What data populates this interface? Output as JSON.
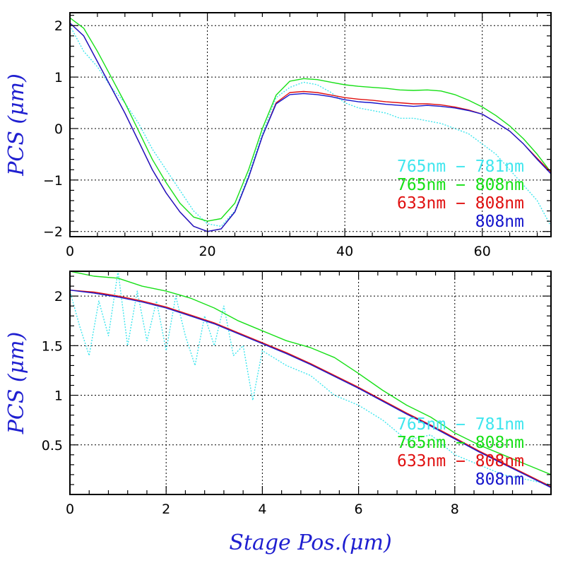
{
  "figure": {
    "xlabel": "Stage Pos.(μm)",
    "ylabel_top": "PCS (μm)",
    "ylabel_bottom": "PCS (μm)"
  },
  "colors": {
    "cyan": "#3fe6ee",
    "green": "#17e017",
    "red": "#e01010",
    "blue": "#1515cc",
    "axis_title": "#1f1fd0"
  },
  "chart_data": [
    {
      "type": "line",
      "panel": "top",
      "xlim": [
        0,
        70
      ],
      "ylim": [
        -2.1,
        2.25
      ],
      "x_ticks": [
        0,
        20,
        40,
        60
      ],
      "y_ticks": [
        -2,
        -1,
        0,
        1,
        2
      ],
      "y_tick_labels": [
        "−2",
        "−1",
        "0",
        "1",
        "2"
      ],
      "grid": true,
      "legend_position": "bottom-right",
      "legend": [
        "765nm − 781nm",
        "765nm − 808nm",
        "633nm − 808nm",
        "808nm"
      ],
      "series": [
        {
          "name": "765nm − 781nm",
          "color": "cyan",
          "style": "dotted",
          "x": [
            0,
            2,
            4,
            6,
            8,
            10,
            12,
            14,
            16,
            18,
            20,
            22,
            24,
            26,
            28,
            30,
            32,
            34,
            36,
            38,
            40,
            42,
            44,
            46,
            48,
            50,
            52,
            54,
            56,
            58,
            60,
            62,
            64,
            66,
            68,
            70
          ],
          "y": [
            2.0,
            1.5,
            1.2,
            0.8,
            0.5,
            0.1,
            -0.4,
            -0.8,
            -1.2,
            -1.6,
            -1.85,
            -1.9,
            -1.6,
            -0.9,
            -0.1,
            0.6,
            0.8,
            0.9,
            0.85,
            0.7,
            0.5,
            0.4,
            0.35,
            0.3,
            0.2,
            0.2,
            0.15,
            0.1,
            0.0,
            -0.1,
            -0.3,
            -0.5,
            -0.8,
            -1.1,
            -1.4,
            -1.9
          ]
        },
        {
          "name": "765nm − 808nm",
          "color": "green",
          "style": "solid",
          "x": [
            0,
            2,
            4,
            6,
            8,
            10,
            12,
            14,
            16,
            18,
            20,
            22,
            24,
            26,
            28,
            30,
            32,
            34,
            36,
            38,
            40,
            42,
            44,
            46,
            48,
            50,
            52,
            54,
            56,
            58,
            60,
            62,
            64,
            66,
            68,
            70
          ],
          "y": [
            2.15,
            1.95,
            1.5,
            1.0,
            0.5,
            -0.05,
            -0.6,
            -1.05,
            -1.45,
            -1.72,
            -1.8,
            -1.75,
            -1.45,
            -0.8,
            0.0,
            0.65,
            0.92,
            0.97,
            0.95,
            0.9,
            0.85,
            0.82,
            0.8,
            0.78,
            0.75,
            0.74,
            0.75,
            0.73,
            0.66,
            0.55,
            0.42,
            0.25,
            0.05,
            -0.2,
            -0.5,
            -0.85
          ]
        },
        {
          "name": "633nm − 808nm",
          "color": "red",
          "style": "solid",
          "x": [
            0,
            2,
            4,
            6,
            8,
            10,
            12,
            14,
            16,
            18,
            20,
            22,
            24,
            26,
            28,
            30,
            32,
            34,
            36,
            38,
            40,
            42,
            44,
            46,
            48,
            50,
            52,
            54,
            56,
            58,
            60,
            62,
            64,
            66,
            68,
            70
          ],
          "y": [
            2.05,
            1.8,
            1.3,
            0.8,
            0.3,
            -0.25,
            -0.8,
            -1.25,
            -1.62,
            -1.9,
            -2.0,
            -1.95,
            -1.62,
            -0.95,
            -0.15,
            0.5,
            0.7,
            0.72,
            0.7,
            0.65,
            0.6,
            0.57,
            0.55,
            0.52,
            0.5,
            0.48,
            0.48,
            0.46,
            0.42,
            0.36,
            0.28,
            0.12,
            -0.05,
            -0.3,
            -0.58,
            -0.85
          ]
        },
        {
          "name": "808nm",
          "color": "blue",
          "style": "solid",
          "x": [
            0,
            2,
            4,
            6,
            8,
            10,
            12,
            14,
            16,
            18,
            20,
            22,
            24,
            26,
            28,
            30,
            32,
            34,
            36,
            38,
            40,
            42,
            44,
            46,
            48,
            50,
            52,
            54,
            56,
            58,
            60,
            62,
            64,
            66,
            68,
            70
          ],
          "y": [
            2.05,
            1.8,
            1.3,
            0.8,
            0.3,
            -0.25,
            -0.8,
            -1.25,
            -1.62,
            -1.9,
            -2.0,
            -1.95,
            -1.62,
            -0.95,
            -0.15,
            0.48,
            0.66,
            0.68,
            0.66,
            0.62,
            0.56,
            0.52,
            0.5,
            0.47,
            0.45,
            0.43,
            0.45,
            0.43,
            0.4,
            0.35,
            0.28,
            0.12,
            -0.05,
            -0.3,
            -0.6,
            -0.88
          ]
        }
      ]
    },
    {
      "type": "line",
      "panel": "bottom",
      "xlim": [
        0,
        10
      ],
      "ylim": [
        0.0,
        2.25
      ],
      "x_ticks": [
        0,
        2,
        4,
        6,
        8
      ],
      "y_ticks": [
        0.5,
        1,
        1.5,
        2
      ],
      "y_tick_labels": [
        "0.5",
        "1",
        "1.5",
        "2"
      ],
      "grid": true,
      "legend_position": "bottom-right",
      "legend": [
        "765nm − 781nm",
        "765nm − 808nm",
        "633nm − 808nm",
        "808nm"
      ],
      "series": [
        {
          "name": "765nm − 781nm",
          "color": "cyan",
          "style": "dotted",
          "x": [
            0,
            0.2,
            0.4,
            0.6,
            0.8,
            1.0,
            1.2,
            1.4,
            1.6,
            1.8,
            2.0,
            2.2,
            2.4,
            2.6,
            2.8,
            3.0,
            3.2,
            3.4,
            3.6,
            3.8,
            4.0,
            4.5,
            5.0,
            5.5,
            6.0,
            6.5,
            7.0,
            7.5,
            8.0,
            8.5,
            9.0,
            9.5,
            10.0
          ],
          "y": [
            2.05,
            1.7,
            1.4,
            1.95,
            1.6,
            2.25,
            1.5,
            2.05,
            1.55,
            1.95,
            1.45,
            2.0,
            1.6,
            1.3,
            1.8,
            1.5,
            1.9,
            1.4,
            1.5,
            0.95,
            1.45,
            1.3,
            1.2,
            1.0,
            0.9,
            0.75,
            0.55,
            0.6,
            0.4,
            0.3,
            0.2,
            0.15,
            0.1
          ]
        },
        {
          "name": "765nm − 808nm",
          "color": "green",
          "style": "solid",
          "x": [
            0,
            0.5,
            1.0,
            1.5,
            2.0,
            2.5,
            3.0,
            3.5,
            4.0,
            4.5,
            5.0,
            5.5,
            6.0,
            6.5,
            7.0,
            7.5,
            8.0,
            8.5,
            9.0,
            9.5,
            10.0
          ],
          "y": [
            2.25,
            2.2,
            2.18,
            2.1,
            2.05,
            1.98,
            1.88,
            1.75,
            1.65,
            1.55,
            1.48,
            1.38,
            1.22,
            1.05,
            0.9,
            0.78,
            0.62,
            0.5,
            0.4,
            0.3,
            0.2
          ]
        },
        {
          "name": "633nm − 808nm",
          "color": "red",
          "style": "solid",
          "x": [
            0,
            0.5,
            1.0,
            1.5,
            2.0,
            2.5,
            3.0,
            3.5,
            4.0,
            4.5,
            5.0,
            5.5,
            6.0,
            6.5,
            7.0,
            7.5,
            8.0,
            8.5,
            9.0,
            9.5,
            10.0
          ],
          "y": [
            2.06,
            2.04,
            2.0,
            1.95,
            1.89,
            1.81,
            1.73,
            1.63,
            1.53,
            1.43,
            1.32,
            1.2,
            1.08,
            0.95,
            0.82,
            0.7,
            0.57,
            0.44,
            0.32,
            0.2,
            0.08
          ]
        },
        {
          "name": "808nm",
          "color": "blue",
          "style": "solid",
          "x": [
            0,
            0.5,
            1.0,
            1.5,
            2.0,
            2.5,
            3.0,
            3.5,
            4.0,
            4.5,
            5.0,
            5.5,
            6.0,
            6.5,
            7.0,
            7.5,
            8.0,
            8.5,
            9.0,
            9.5,
            10.0
          ],
          "y": [
            2.06,
            2.03,
            1.99,
            1.94,
            1.88,
            1.8,
            1.72,
            1.62,
            1.52,
            1.42,
            1.31,
            1.19,
            1.07,
            0.94,
            0.81,
            0.69,
            0.56,
            0.43,
            0.31,
            0.19,
            0.07
          ]
        }
      ]
    }
  ]
}
